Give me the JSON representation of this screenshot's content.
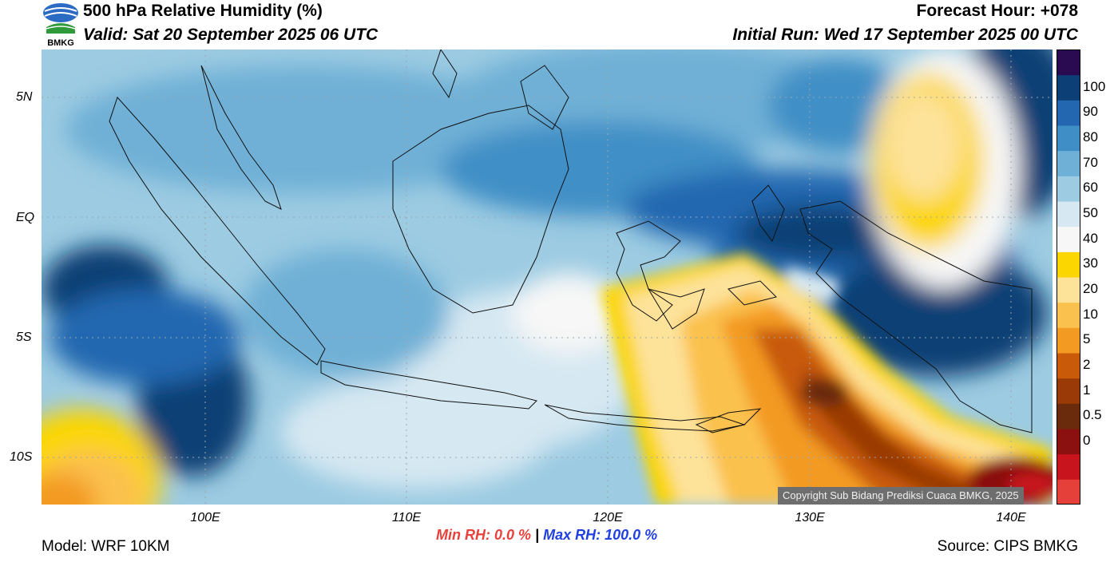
{
  "header": {
    "title": "500 hPa Relative Humidity (%)",
    "valid": "Valid: Sat 20 September 2025 06 UTC",
    "forecast_hour": "Forecast Hour: +078",
    "initial_run": "Initial Run: Wed 17 September 2025 00 UTC",
    "logo_text": "BMKG"
  },
  "map": {
    "lat_labels": [
      "5N",
      "EQ",
      "5S",
      "10S"
    ],
    "lon_labels": [
      "100E",
      "110E",
      "120E",
      "130E",
      "140E"
    ],
    "copyright": "Copyright Sub Bidang Prediksi Cuaca BMKG, 2025"
  },
  "colorbar": {
    "labels": [
      "100",
      "90",
      "80",
      "70",
      "60",
      "50",
      "40",
      "30",
      "20",
      "10",
      "5",
      "2",
      "1",
      "0.5",
      "0"
    ],
    "colors": [
      "#e6403a",
      "#c8141c",
      "#8b1010",
      "#6a2a0c",
      "#9a3a06",
      "#c85a0a",
      "#f39a22",
      "#fbc14e",
      "#fde29a",
      "#fcd600",
      "#f7f7f7",
      "#d6e8f2",
      "#9ccbe2",
      "#6fb0d6",
      "#3f8fc6",
      "#2267b0",
      "#0c3f75",
      "#2a0a50"
    ]
  },
  "stats": {
    "min_label": "Min RH:   0.0 %",
    "separator": "|",
    "max_label": "Max RH: 100.0 %"
  },
  "footer": {
    "model": "Model: WRF 10KM",
    "source": "Source: CIPS BMKG"
  }
}
